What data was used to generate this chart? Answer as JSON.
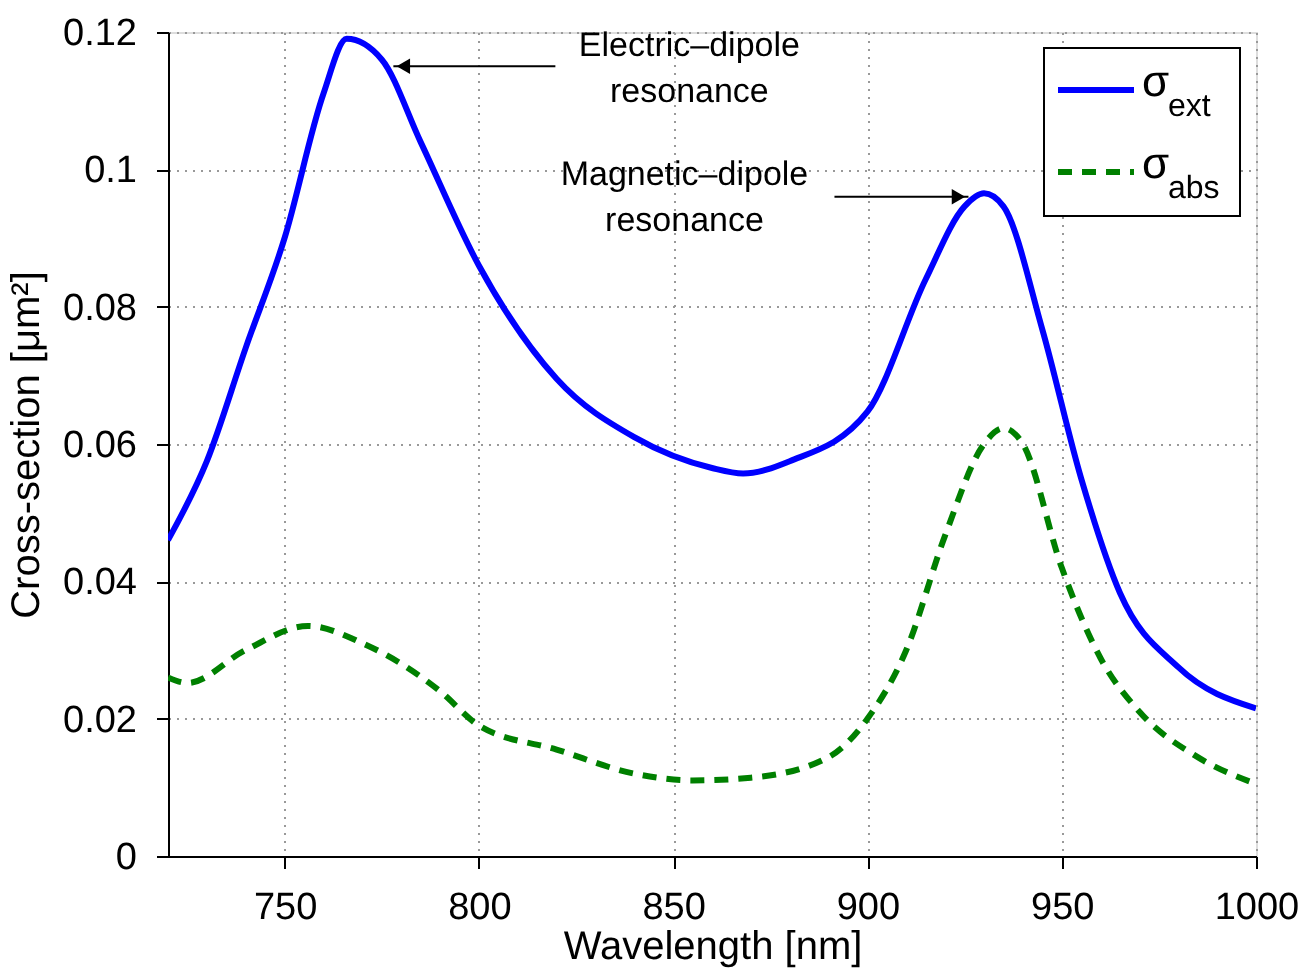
{
  "chart_data": {
    "type": "line",
    "xlabel": "Wavelength [nm]",
    "ylabel": "Cross-section [μm²]",
    "xlim": [
      720,
      1000
    ],
    "xticks": [
      750,
      800,
      850,
      900,
      950,
      1000
    ],
    "ylim": [
      0,
      0.12
    ],
    "yticks": [
      0,
      0.02,
      0.04,
      0.06,
      0.08,
      0.1,
      0.12
    ],
    "grid": true,
    "legend": "top right",
    "annotations": [
      {
        "text": "Electric–dipole\nresonance",
        "x": 778,
        "y": 0.115
      },
      {
        "text": "Magnetic–dipole\nresonance",
        "x": 926,
        "y": 0.096
      }
    ],
    "series": [
      {
        "name": "σ$_{ext}$",
        "color": "#0000ff",
        "line_style": "solid",
        "x": [
          720,
          730,
          740,
          750,
          760,
          766,
          775,
          785,
          800,
          820,
          840,
          860,
          868,
          880,
          900,
          915,
          925,
          930,
          935,
          945,
          955,
          965,
          980,
          1000
        ],
        "values": [
          0.046,
          0.0575,
          0.074,
          0.09,
          0.111,
          0.119,
          0.116,
          0.104,
          0.086,
          0.0695,
          0.061,
          0.0565,
          0.0557,
          0.0575,
          0.0647,
          0.084,
          0.0946,
          0.0965,
          0.0946,
          0.0767,
          0.055,
          0.0383,
          0.0275,
          0.0215
        ]
      },
      {
        "name": "σ$_{abs}$",
        "color": "#008000",
        "line_style": "dashed",
        "x": [
          720,
          725,
          740,
          756,
          770,
          790,
          800,
          820,
          840,
          855,
          870,
          890,
          900,
          910,
          920,
          930,
          935,
          940,
          950,
          960,
          970,
          985,
          1000
        ],
        "values": [
          0.026,
          0.0252,
          0.03,
          0.0335,
          0.031,
          0.024,
          0.019,
          0.0155,
          0.012,
          0.011,
          0.0114,
          0.0144,
          0.02,
          0.03,
          0.0467,
          0.06,
          0.0623,
          0.06,
          0.042,
          0.0288,
          0.021,
          0.0144,
          0.0105
        ]
      }
    ]
  }
}
